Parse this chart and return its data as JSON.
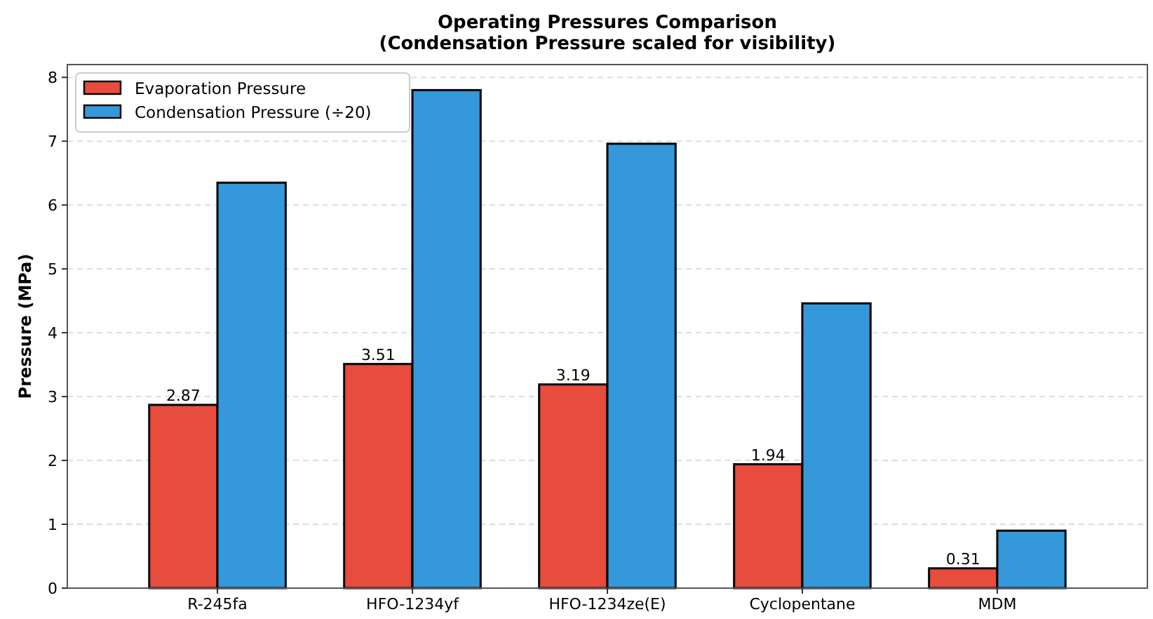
{
  "chart_data": {
    "type": "bar",
    "title": "Operating Pressures Comparison\n(Condensation Pressure scaled for visibility)",
    "ylabel": "Pressure (MPa)",
    "categories": [
      "R-245fa",
      "HFO-1234yf",
      "HFO-1234ze(E)",
      "Cyclopentane",
      "MDM"
    ],
    "series": [
      {
        "name": "Evaporation Pressure",
        "color": "#e74c3c",
        "values": [
          2.87,
          3.51,
          3.19,
          1.94,
          0.31
        ],
        "value_labels": [
          "2.87",
          "3.51",
          "3.19",
          "1.94",
          "0.31"
        ]
      },
      {
        "name": "Condensation Pressure (÷20)",
        "color": "#3498db",
        "values": [
          6.35,
          7.8,
          6.96,
          4.46,
          0.9
        ]
      }
    ],
    "ylim": [
      0,
      8.2
    ],
    "yticks": [
      0,
      1,
      2,
      3,
      4,
      5,
      6,
      7,
      8
    ],
    "grid": "y",
    "legend": "top left"
  }
}
